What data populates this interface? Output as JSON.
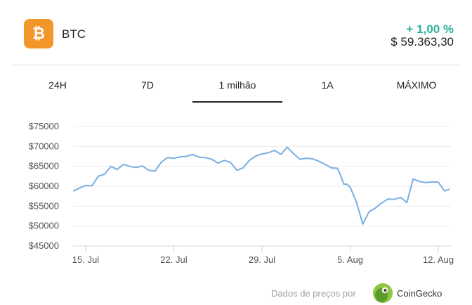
{
  "coin": {
    "icon": "bitcoin-icon",
    "icon_glyph": "₿",
    "symbol": "BTC"
  },
  "price": {
    "change": "+ 1,00 %",
    "value": "$ 59.363,30"
  },
  "tabs": [
    {
      "label": "24H",
      "active": false
    },
    {
      "label": "7D",
      "active": false
    },
    {
      "label": "1 milhão",
      "active": true
    },
    {
      "label": "1A",
      "active": false
    },
    {
      "label": "MÁXIMO",
      "active": false
    }
  ],
  "colors": {
    "line": "#7aafe3",
    "change_positive": "#29b39a",
    "brand_orange": "#f3962a"
  },
  "chart_data": {
    "type": "line",
    "title": "",
    "xlabel": "",
    "ylabel": "",
    "ylim": [
      45000,
      75000
    ],
    "yticks": [
      75000,
      70000,
      65000,
      60000,
      55000,
      50000,
      45000
    ],
    "ytick_labels": [
      "$75000",
      "$70000",
      "$65000",
      "$60000",
      "$55000",
      "$50000",
      "$45000"
    ],
    "xticks": [
      1,
      8,
      15,
      22,
      29
    ],
    "xtick_labels": [
      "15. Jul",
      "22. Jul",
      "29. Jul",
      "5. Aug",
      "12. Aug"
    ],
    "x_range": [
      0,
      30
    ],
    "grid": true,
    "series": [
      {
        "x": [
          0,
          0.5,
          1,
          1.5,
          2,
          2.5,
          3,
          3.5,
          4,
          4.5,
          5,
          5.5,
          6,
          6.5,
          7,
          7.5,
          8,
          8.5,
          9,
          9.5,
          10,
          10.5,
          11,
          11.5,
          12,
          12.5,
          13,
          13.5,
          14,
          14.5,
          15,
          15.5,
          16,
          16.5,
          17,
          17.5,
          18,
          18.5,
          19,
          19.5,
          20,
          20.5,
          21,
          21.3,
          21.5,
          21.7,
          22,
          22.5,
          23,
          23.5,
          24,
          24.5,
          25,
          25.5,
          26,
          26.5,
          27,
          27.5,
          28,
          28.5,
          29,
          29.5,
          29.9
        ],
        "y": [
          58800,
          59500,
          60200,
          60100,
          62500,
          63000,
          65000,
          64200,
          65500,
          65000,
          64700,
          65100,
          64000,
          63800,
          66000,
          67200,
          67000,
          67400,
          67500,
          68000,
          67300,
          67200,
          66800,
          65800,
          66500,
          66000,
          64000,
          64600,
          66500,
          67600,
          68100,
          68400,
          69000,
          68000,
          69800,
          68200,
          66800,
          67000,
          66900,
          66300,
          65500,
          64600,
          64500,
          62200,
          60500,
          60600,
          59800,
          56000,
          50500,
          53600,
          54500,
          55800,
          56800,
          56700,
          57200,
          55900,
          61800,
          61200,
          60900,
          61100,
          61000,
          58800,
          59300
        ]
      }
    ]
  },
  "footer": {
    "prefix": "Dados de preços por",
    "brand": "CoinGecko",
    "brand_icon": "coingecko-icon"
  }
}
